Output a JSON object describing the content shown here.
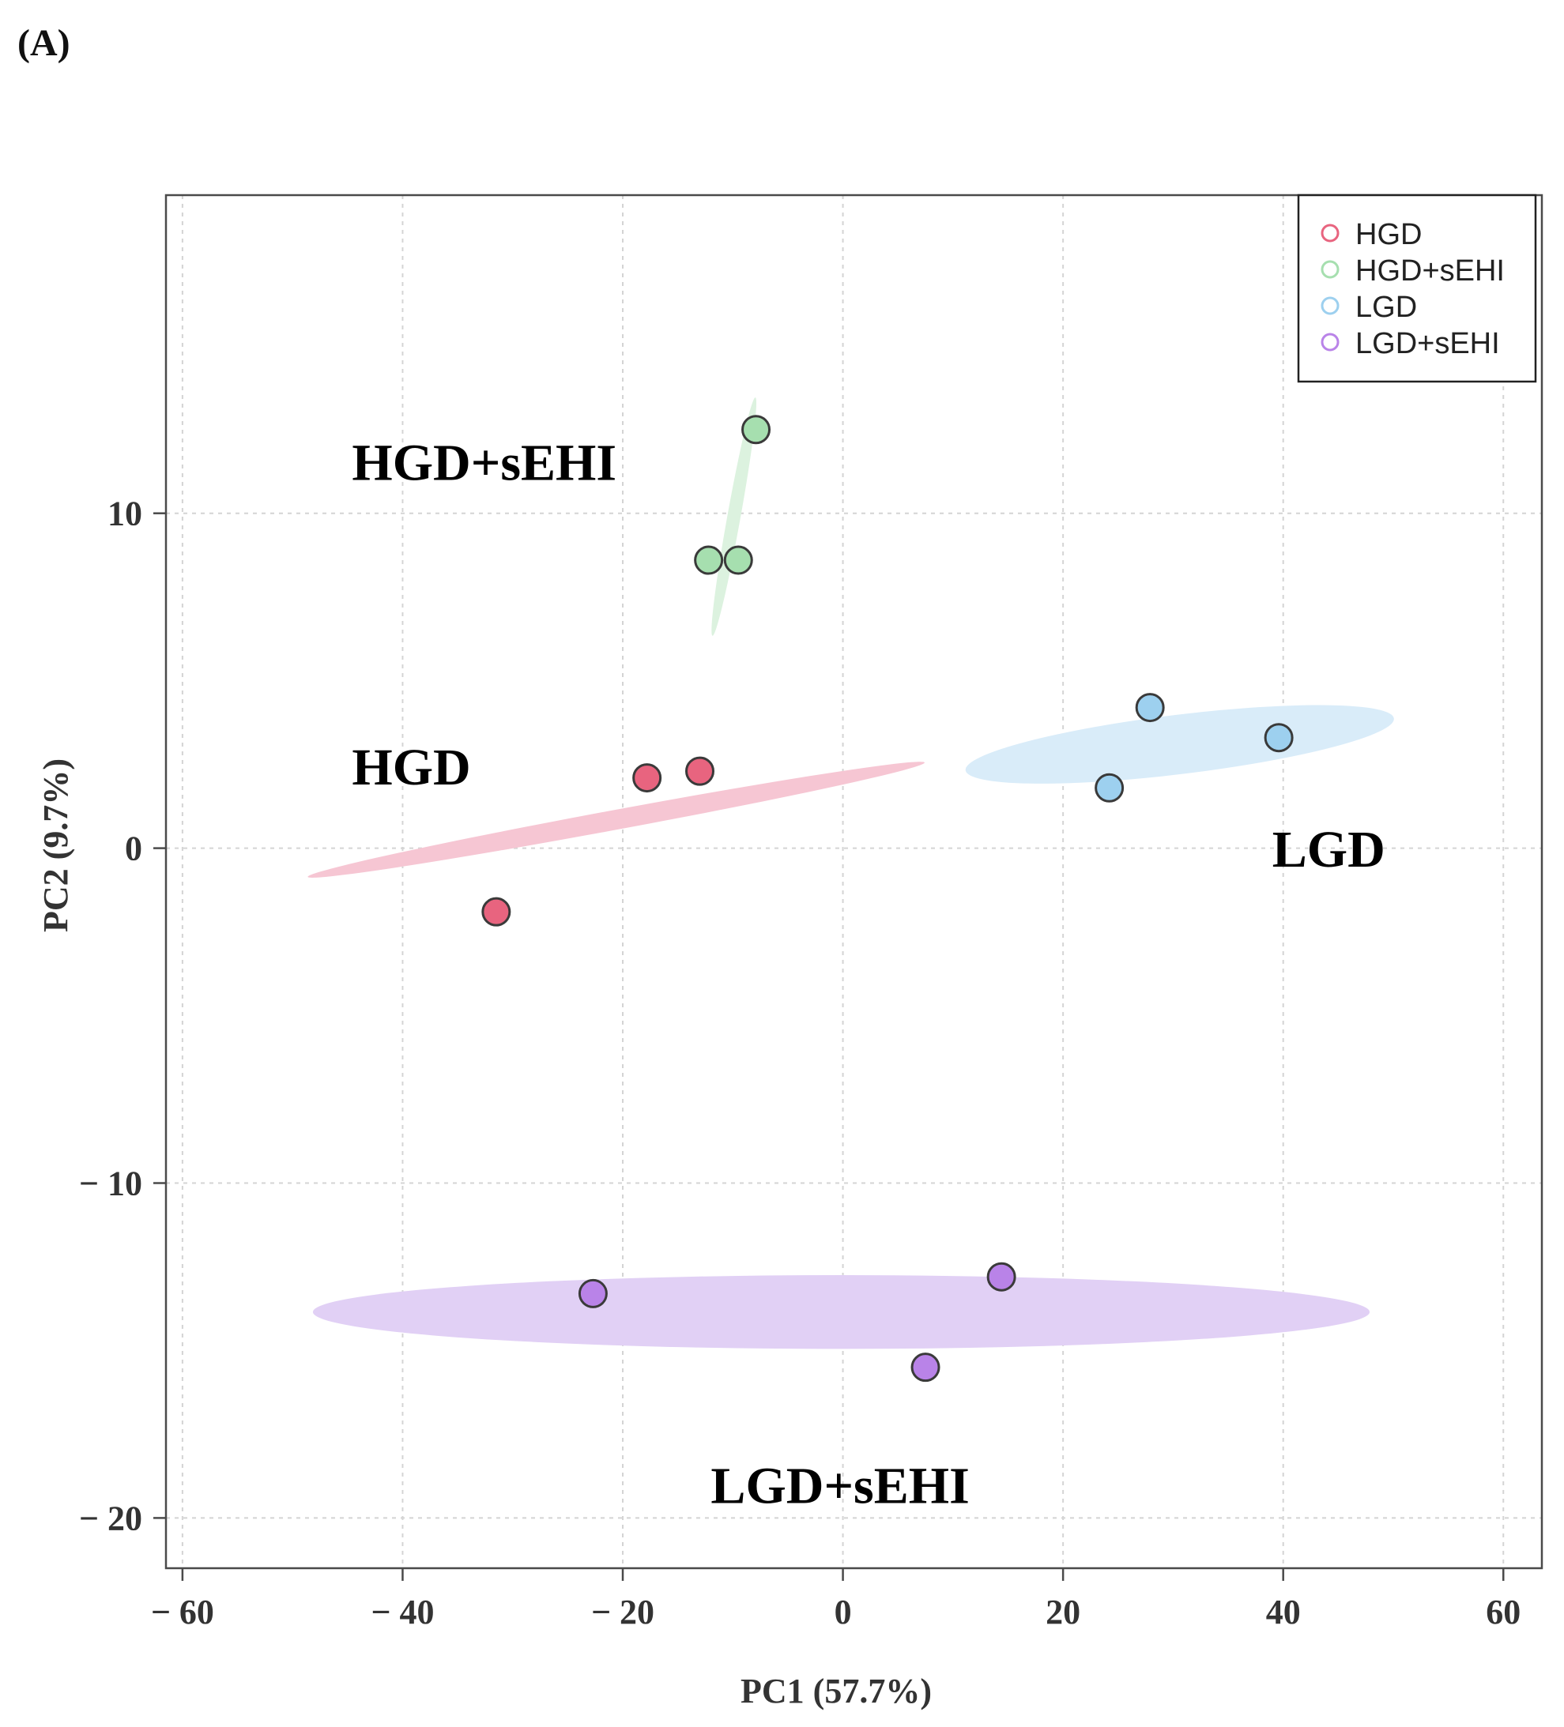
{
  "panel_label": "(A)",
  "colors": {
    "HGD": "#e8647f",
    "HGD+sEHI": "#a6dfaf",
    "LGD": "#9dd0ef",
    "LGD+sEHI": "#b983e8",
    "HGD_fill": "#f6c6d3",
    "HGD+sEHI_fill": "#dcf2df",
    "LGD_fill": "#d9ecf9",
    "LGD+sEHI_fill": "#e1d0f5",
    "grid": "#d4d4d4",
    "frame": "#4a4a4a"
  },
  "chart_data": {
    "type": "scatter",
    "title": "",
    "xlabel": "PC1 (57.7%)",
    "ylabel": "PC2 (9.7%)",
    "xlim": [
      -61.5,
      63.5
    ],
    "ylim": [
      -21.5,
      19.5
    ],
    "xticks": [
      -60,
      -40,
      -20,
      0,
      20,
      40,
      60
    ],
    "xtick_labels": [
      "− 60",
      "− 40",
      "− 20",
      "0",
      "20",
      "40",
      "60"
    ],
    "yticks": [
      -20,
      -10,
      0,
      10
    ],
    "ytick_labels": [
      "− 20",
      "− 10",
      "0",
      "10"
    ],
    "grid": true,
    "legend_position": "top-right",
    "series": [
      {
        "name": "HGD",
        "label": "HGD",
        "points": [
          [
            -31.5,
            -1.9
          ],
          [
            -17.8,
            2.1
          ],
          [
            -13.0,
            2.3
          ]
        ],
        "ellipse": {
          "cx": -20.6,
          "cy": 0.85,
          "rx": 28.5,
          "ry": 0.9,
          "angle_deg": 10.5
        }
      },
      {
        "name": "HGD+sEHI",
        "label": "HGD+sEHI",
        "points": [
          [
            -12.2,
            8.6
          ],
          [
            -9.5,
            8.6
          ],
          [
            -7.9,
            12.5
          ]
        ],
        "ellipse": {
          "cx": -9.9,
          "cy": 9.9,
          "rx": 11.0,
          "ry": 0.6,
          "angle_deg": 79.8
        }
      },
      {
        "name": "LGD",
        "label": "LGD",
        "points": [
          [
            24.2,
            1.8
          ],
          [
            27.9,
            4.2
          ],
          [
            39.6,
            3.3
          ]
        ],
        "ellipse": {
          "cx": 30.6,
          "cy": 3.1,
          "rx": 19.6,
          "ry": 2.7,
          "angle_deg": 6.9
        }
      },
      {
        "name": "LGD+sEHI",
        "label": "LGD+sEHI",
        "points": [
          [
            -22.7,
            -13.3
          ],
          [
            7.5,
            -15.5
          ],
          [
            14.4,
            -12.8
          ]
        ],
        "ellipse": {
          "cx": -0.15,
          "cy": -13.85,
          "rx": 48.0,
          "ry": 3.35,
          "angle_deg": 0
        }
      }
    ],
    "annotations": [
      {
        "text": "HGD+sEHI",
        "x": -44.6,
        "y": 11.0
      },
      {
        "text": "HGD",
        "x": -44.6,
        "y": 1.9
      },
      {
        "text": "LGD",
        "x": 39.0,
        "y": -0.55
      },
      {
        "text": "LGD+sEHI",
        "x": -12.0,
        "y": -19.55
      }
    ]
  }
}
